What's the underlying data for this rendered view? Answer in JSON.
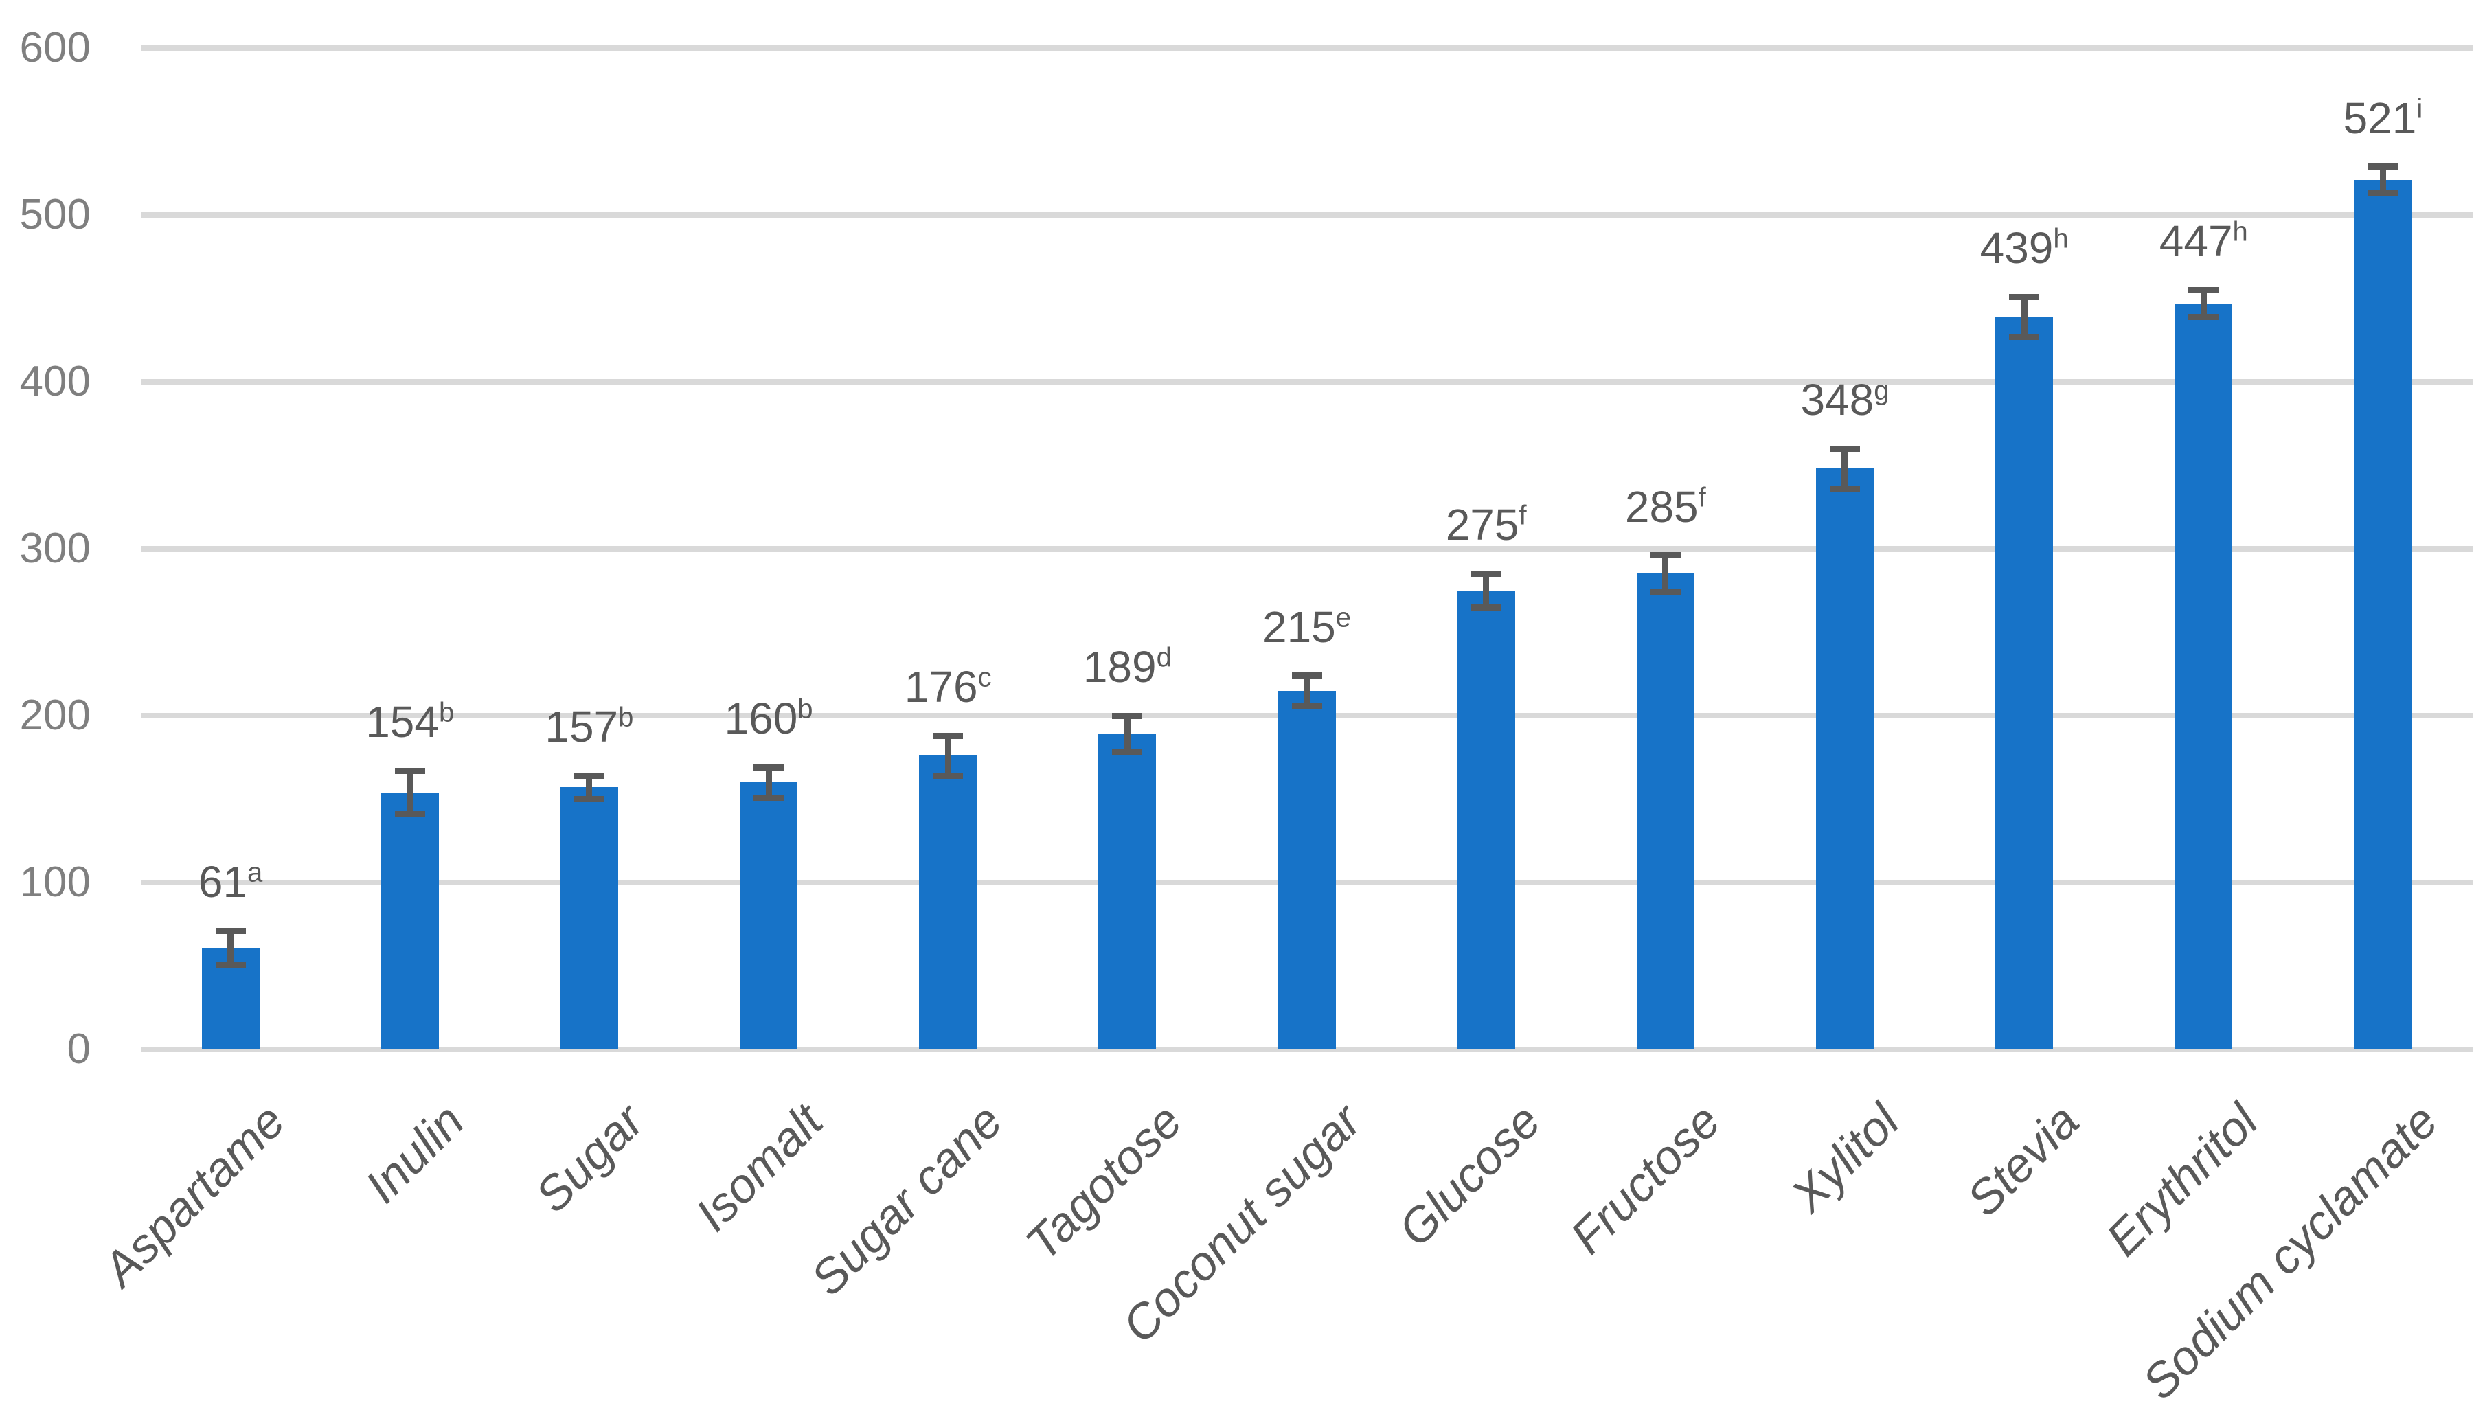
{
  "page": {
    "background": "#FFFFFF"
  },
  "chart_data": {
    "type": "bar",
    "title": "",
    "xlabel": "",
    "ylabel": "",
    "categories": [
      "Aspartame",
      "Inulin",
      "Sugar",
      "Isomalt",
      "Sugar cane",
      "Tagotose",
      "Coconut sugar",
      "Glucose",
      "Fructose",
      "Xylitol",
      "Stevia",
      "Erythritol",
      "Sodium cyclamate"
    ],
    "values": [
      61,
      154,
      157,
      160,
      176,
      189,
      215,
      275,
      285,
      348,
      439,
      447,
      521
    ],
    "error_bars": [
      10,
      13,
      7,
      9,
      12,
      11,
      9,
      10,
      11,
      12,
      12,
      8,
      8
    ],
    "superscripts": [
      "a",
      "b",
      "b",
      "b",
      "c",
      "d",
      "e",
      "f",
      "f",
      "g",
      "h",
      "h",
      "i"
    ],
    "data_labels": [
      "61a",
      "154b",
      "157b",
      "160b",
      "176c",
      "189d",
      "215e",
      "275f",
      "285f",
      "348g",
      "439h",
      "447h",
      "521i"
    ],
    "ylim": [
      0,
      600
    ],
    "yticks": [
      0,
      100,
      200,
      300,
      400,
      500,
      600
    ],
    "grid": true,
    "legend_position": "none",
    "bar_color": "#1773C8",
    "gridline_color": "#D9D9D9",
    "error_bar_color": "#595959",
    "data_label_color": "#595959",
    "x_tick_label_color": "#595959",
    "y_tick_label_color": "#7F7F7F"
  }
}
